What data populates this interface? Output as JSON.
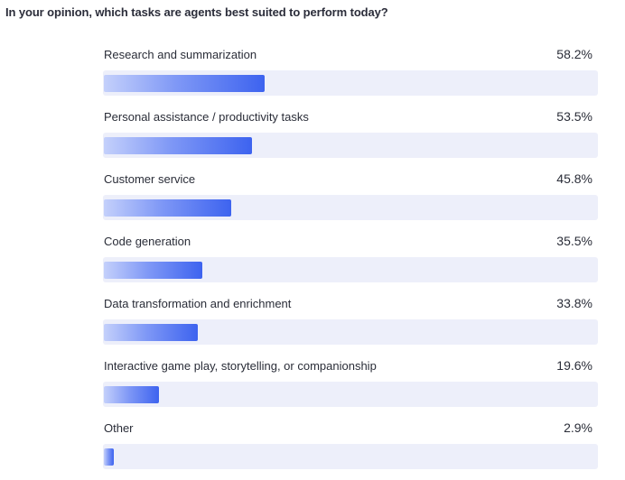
{
  "question": "In your opinion, which tasks are agents best suited to perform today?",
  "chart_data": {
    "type": "bar",
    "orientation": "horizontal",
    "title": "In your opinion, which tasks are agents best suited to perform today?",
    "unit": "%",
    "xlim": [
      0,
      100
    ],
    "categories": [
      "Research and summarization",
      "Personal assistance / productivity tasks",
      "Customer service",
      "Code generation",
      "Data transformation and enrichment",
      "Interactive game play, storytelling, or companionship",
      "Other"
    ],
    "values": [
      58.2,
      53.5,
      45.8,
      35.5,
      33.8,
      19.6,
      2.9
    ],
    "value_labels": [
      "58.2%",
      "53.5%",
      "45.8%",
      "35.5%",
      "33.8%",
      "19.6%",
      "2.9%"
    ],
    "colors": {
      "bar_start": "#c4d0fb",
      "bar_end": "#3d63ef",
      "track": "#edeffa"
    }
  }
}
